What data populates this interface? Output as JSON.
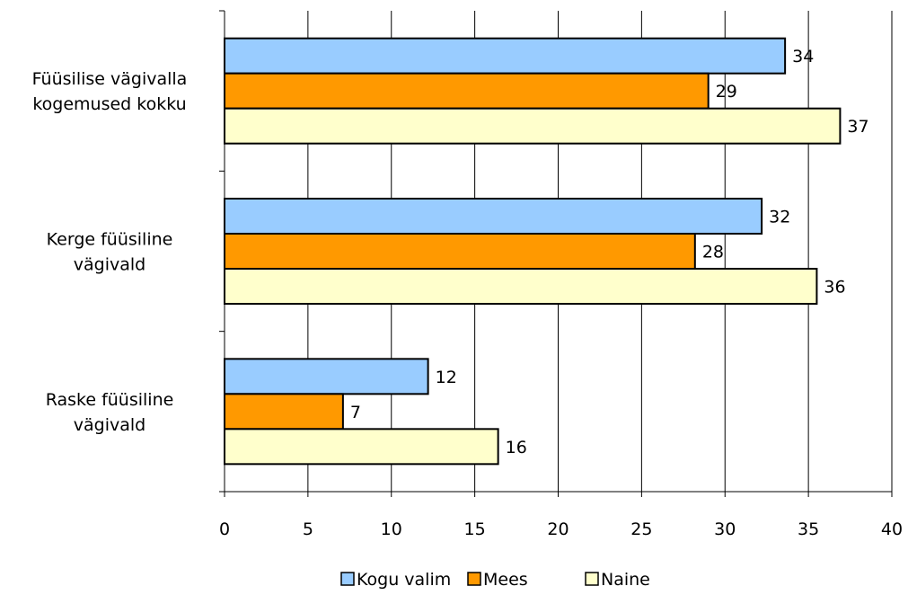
{
  "chart_data": {
    "type": "bar",
    "orientation": "horizontal",
    "categories": [
      [
        "Füüsilise vägivalla",
        "kogemused kokku"
      ],
      [
        "Kerge füüsiline",
        "vägivald"
      ],
      [
        "Raske füüsiline",
        "vägivald"
      ]
    ],
    "series": [
      {
        "name": "Kogu valim",
        "color": "#99ccff",
        "values": [
          33.6,
          32.2,
          12.2
        ],
        "labels": [
          "34",
          "32",
          "12"
        ]
      },
      {
        "name": "Mees",
        "color": "#ff9900",
        "values": [
          29.0,
          28.2,
          7.1
        ],
        "labels": [
          "29",
          "28",
          "7"
        ]
      },
      {
        "name": "Naine",
        "color": "#ffffcc",
        "values": [
          36.9,
          35.5,
          16.4
        ],
        "labels": [
          "37",
          "36",
          "16"
        ]
      }
    ],
    "xlim": [
      0,
      40
    ],
    "xticks": [
      0,
      5,
      10,
      15,
      20,
      25,
      30,
      35,
      40
    ],
    "grid": "vertical",
    "legend": "bottom"
  }
}
